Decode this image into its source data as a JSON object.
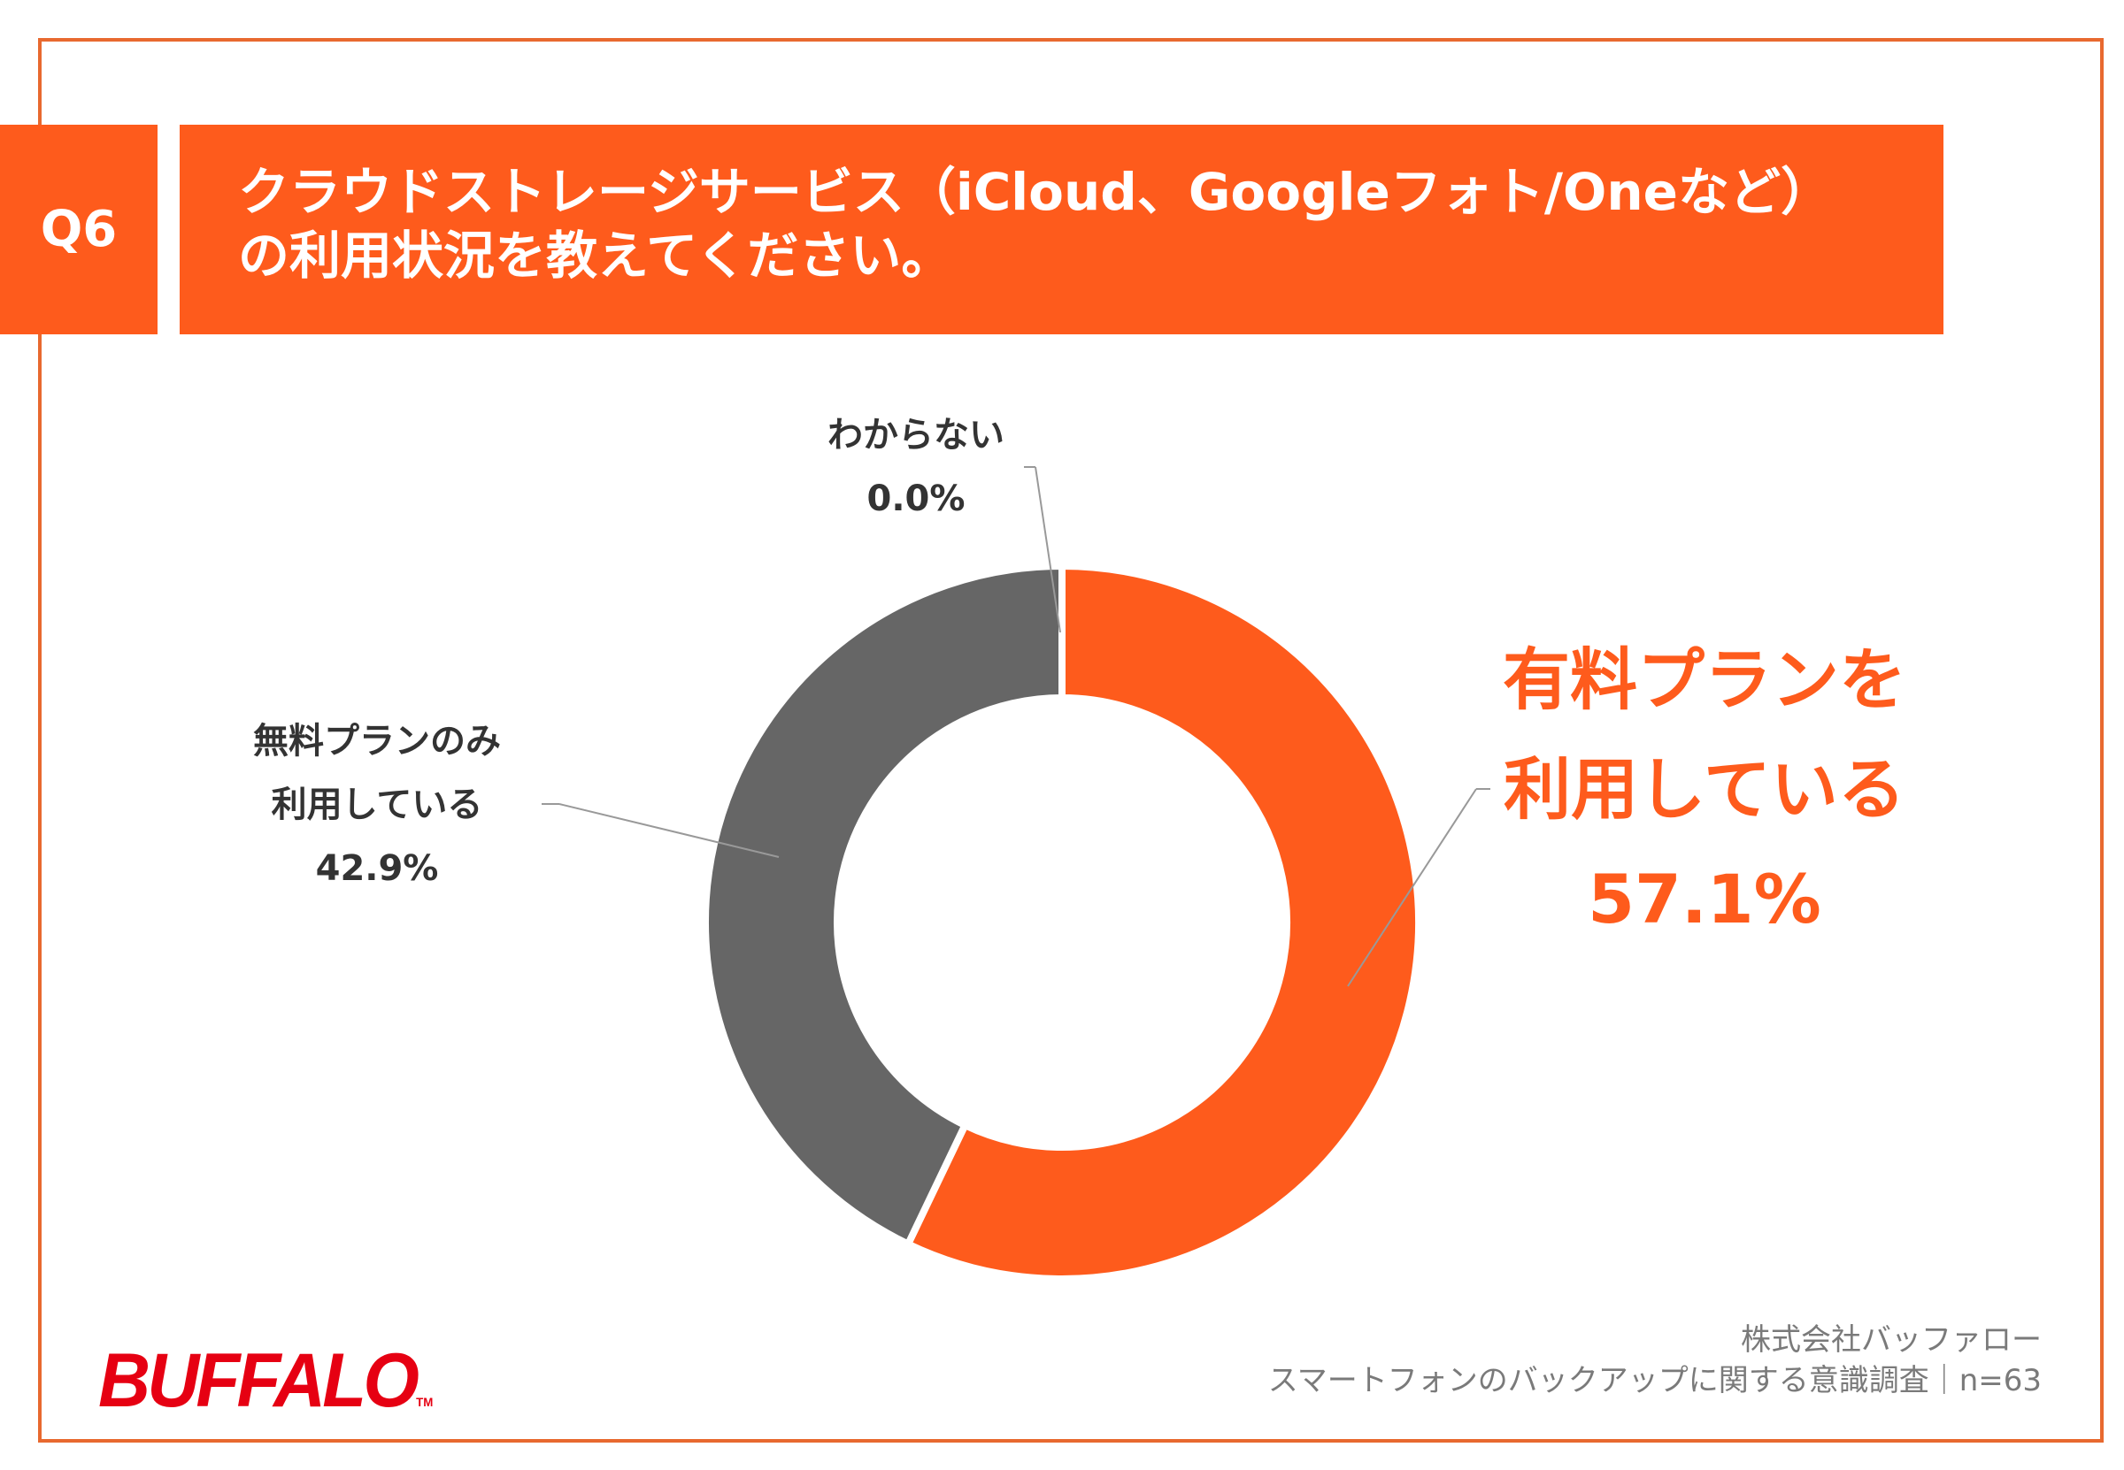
{
  "header": {
    "question_no": "Q6",
    "title_line1": "クラウドストレージサービス（iCloud、Googleフォト/Oneなど）",
    "title_line2": "の利用状況を教えてください。"
  },
  "chart_data": {
    "type": "pie",
    "style": "donut",
    "start": "top, clockwise",
    "slices": [
      {
        "label_line1": "有料プランを",
        "label_line2": "利用している",
        "value": 57.1,
        "value_label": "57.1%",
        "color": "#fe5b1c"
      },
      {
        "label_line1": "無料プランのみ",
        "label_line2": "利用している",
        "value": 42.9,
        "value_label": "42.9%",
        "color": "#666666"
      },
      {
        "label_line1": "わからない",
        "value": 0.0,
        "value_label": "0.0%",
        "color": "#999999"
      }
    ]
  },
  "footer": {
    "company": "株式会社バッファロー",
    "survey": "スマートフォンのバックアップに関する意識調査｜n=63"
  },
  "logo": {
    "text": "BUFFALO",
    "tm": "TM",
    "color": "#e60012"
  },
  "colors": {
    "accent": "#fe5b1c",
    "frame": "#e8692f",
    "secondary": "#666666"
  }
}
